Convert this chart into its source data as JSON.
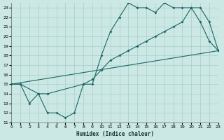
{
  "xlabel": "Humidex (Indice chaleur)",
  "bg_color": "#cce8e4",
  "grid_color": "#a8ceca",
  "line_color": "#1a6666",
  "xlim": [
    0,
    23
  ],
  "ylim": [
    11,
    23.5
  ],
  "yticks": [
    11,
    12,
    13,
    14,
    15,
    16,
    17,
    18,
    19,
    20,
    21,
    22,
    23
  ],
  "xticks": [
    0,
    1,
    2,
    3,
    4,
    5,
    6,
    7,
    8,
    9,
    10,
    11,
    12,
    13,
    14,
    15,
    16,
    17,
    18,
    19,
    20,
    21,
    22,
    23
  ],
  "line1_x": [
    0,
    1,
    2,
    3,
    4,
    5,
    6,
    7,
    8,
    9,
    10,
    11,
    12,
    13,
    14,
    15,
    16,
    17,
    18,
    19,
    20,
    21,
    22,
    23
  ],
  "line1_y": [
    15,
    15,
    13,
    14,
    12,
    12,
    11.5,
    12,
    15,
    15,
    18,
    20.5,
    22,
    23.5,
    23,
    23,
    22.5,
    23.5,
    23,
    23,
    23,
    21.5,
    19.5,
    18.5
  ],
  "line2_x": [
    0,
    23
  ],
  "line2_y": [
    15,
    18.5
  ],
  "line3_x": [
    0,
    1,
    3,
    4,
    8,
    9,
    10,
    11,
    12,
    13,
    14,
    15,
    16,
    17,
    18,
    19,
    20,
    21,
    22,
    23
  ],
  "line3_y": [
    15,
    15,
    14,
    14,
    15,
    15.5,
    16.5,
    17.5,
    18,
    18.5,
    19,
    19.5,
    20,
    20.5,
    21,
    21.5,
    23,
    23,
    21.5,
    18.5
  ]
}
